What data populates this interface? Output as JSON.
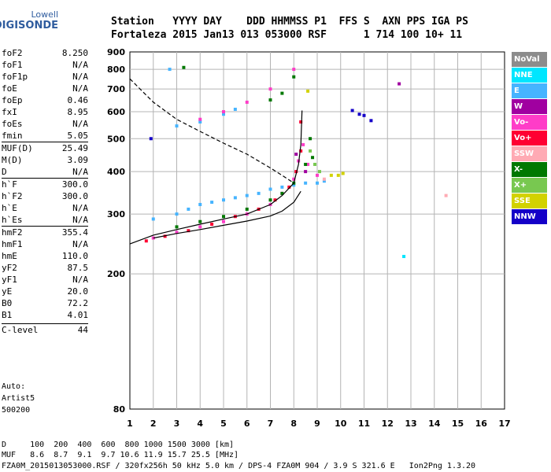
{
  "logo": {
    "top": "Lowell",
    "bottom": "DIGISONDE"
  },
  "header": {
    "line1": "Station   YYYY DAY    DDD HHMMSS P1  FFS S  AXN PPS IGA PS",
    "line2": "Fortaleza 2015 Jan13 013 053000 RSF      1 714 100 10+ 11"
  },
  "params": [
    {
      "name": "foF2",
      "value": "8.250"
    },
    {
      "name": "foF1",
      "value": "N/A"
    },
    {
      "name": "foF1p",
      "value": "N/A"
    },
    {
      "name": "foE",
      "value": "N/A"
    },
    {
      "name": "foEp",
      "value": "0.46"
    },
    {
      "name": "fxI",
      "value": "8.95"
    },
    {
      "name": "foEs",
      "value": "N/A"
    },
    {
      "name": "fmin",
      "value": "5.05"
    },
    {
      "name": "MUF(D)",
      "value": "25.49",
      "sep": true
    },
    {
      "name": "M(D)",
      "value": "3.09"
    },
    {
      "name": "D",
      "value": "N/A"
    },
    {
      "name": "h`F",
      "value": "300.0",
      "sep": true
    },
    {
      "name": "h`F2",
      "value": "300.0"
    },
    {
      "name": "h`E",
      "value": "N/A"
    },
    {
      "name": "h`Es",
      "value": "N/A"
    },
    {
      "name": "hmF2",
      "value": "355.4",
      "sep": true
    },
    {
      "name": "hmF1",
      "value": "N/A"
    },
    {
      "name": "hmE",
      "value": "110.0"
    },
    {
      "name": "yF2",
      "value": "87.5"
    },
    {
      "name": "yF1",
      "value": "N/A"
    },
    {
      "name": "yE",
      "value": "20.0"
    },
    {
      "name": "B0",
      "value": "72.2"
    },
    {
      "name": "B1",
      "value": "4.01"
    },
    {
      "name": "C-level",
      "value": "44",
      "sep": true,
      "gap": true
    }
  ],
  "auto": {
    "line1": "Auto:",
    "line2": "Artist5",
    "line3": "500200"
  },
  "legend": [
    {
      "label": "NoVal",
      "color": "#8c8c8c"
    },
    {
      "label": "NNE",
      "color": "#00e6ff"
    },
    {
      "label": "E",
      "color": "#46b4ff"
    },
    {
      "label": "W",
      "color": "#a000a0"
    },
    {
      "label": "Vo-",
      "color": "#ff3cc8"
    },
    {
      "label": "Vo+",
      "color": "#ff0032"
    },
    {
      "label": "SSW",
      "color": "#ffaab4"
    },
    {
      "label": "X-",
      "color": "#007800"
    },
    {
      "label": "X+",
      "color": "#78c850"
    },
    {
      "label": "SSE",
      "color": "#d2d200"
    },
    {
      "label": "NNW",
      "color": "#1400c8"
    }
  ],
  "footer": {
    "line1": "D     100  200  400  600  800 1000 1500 3000 [km]",
    "line2": "MUF   8.6  8.7  9.1  9.7 10.6 11.9 15.7 25.5 [MHz]",
    "line3": "FZA0M_2015013053000.RSF / 320fx256h 50 kHz 5.0 km / DPS-4 FZA0M 904 / 3.9 S 321.6 E   Ion2Png 1.3.20"
  },
  "chart_data": {
    "type": "scatter",
    "xlim": [
      1,
      17
    ],
    "ylim": [
      80,
      900
    ],
    "x_scale": "linear",
    "y_scale": "log",
    "xticks": [
      1,
      2,
      3,
      4,
      5,
      6,
      7,
      8,
      9,
      10,
      11,
      12,
      13,
      14,
      15,
      16,
      17
    ],
    "yticks": [
      80,
      200,
      300,
      400,
      500,
      600,
      700,
      800,
      900
    ],
    "grid": true,
    "legend_position": "right",
    "series": [
      {
        "name": "E",
        "color": "#46b4ff",
        "points": [
          [
            2.0,
            290
          ],
          [
            3.0,
            300
          ],
          [
            3.5,
            310
          ],
          [
            4.0,
            320
          ],
          [
            4.5,
            325
          ],
          [
            5.0,
            330
          ],
          [
            5.5,
            335
          ],
          [
            6.0,
            340
          ],
          [
            6.5,
            345
          ],
          [
            7.0,
            355
          ],
          [
            7.5,
            360
          ],
          [
            8.0,
            365
          ],
          [
            8.5,
            370
          ],
          [
            9.0,
            370
          ],
          [
            9.3,
            375
          ],
          [
            3.0,
            545
          ],
          [
            4.0,
            560
          ],
          [
            5.0,
            590
          ],
          [
            5.5,
            610
          ],
          [
            2.7,
            800
          ]
        ]
      },
      {
        "name": "Vo-",
        "color": "#ff3cc8",
        "points": [
          [
            2.0,
            255
          ],
          [
            3.0,
            265
          ],
          [
            4.0,
            275
          ],
          [
            5.0,
            285
          ],
          [
            6.0,
            300
          ],
          [
            7.0,
            320
          ],
          [
            7.5,
            345
          ],
          [
            8.0,
            380
          ],
          [
            8.2,
            430
          ],
          [
            8.4,
            480
          ],
          [
            8.6,
            420
          ],
          [
            9.0,
            390
          ],
          [
            4.0,
            570
          ],
          [
            5.0,
            600
          ],
          [
            6.0,
            640
          ],
          [
            7.0,
            700
          ],
          [
            8.0,
            800
          ]
        ]
      },
      {
        "name": "Vo+",
        "color": "#ff0032",
        "points": [
          [
            1.7,
            250
          ],
          [
            2.5,
            258
          ],
          [
            3.5,
            268
          ],
          [
            4.5,
            280
          ],
          [
            5.5,
            295
          ],
          [
            6.5,
            310
          ],
          [
            7.2,
            330
          ],
          [
            7.8,
            360
          ],
          [
            8.1,
            400
          ],
          [
            8.3,
            460
          ],
          [
            8.3,
            560
          ]
        ]
      },
      {
        "name": "X-",
        "color": "#007800",
        "points": [
          [
            3.0,
            275
          ],
          [
            4.0,
            285
          ],
          [
            5.0,
            295
          ],
          [
            6.0,
            310
          ],
          [
            7.0,
            330
          ],
          [
            7.5,
            345
          ],
          [
            8.0,
            370
          ],
          [
            8.5,
            420
          ],
          [
            8.7,
            500
          ],
          [
            8.8,
            440
          ],
          [
            7.0,
            650
          ],
          [
            7.5,
            680
          ],
          [
            8.0,
            760
          ],
          [
            3.3,
            810
          ]
        ]
      },
      {
        "name": "X+",
        "color": "#78c850",
        "points": [
          [
            8.7,
            460
          ],
          [
            8.9,
            420
          ],
          [
            9.1,
            400
          ]
        ]
      },
      {
        "name": "SSE",
        "color": "#d2d200",
        "points": [
          [
            9.6,
            390
          ],
          [
            9.9,
            390
          ],
          [
            10.1,
            395
          ],
          [
            8.6,
            690
          ]
        ]
      },
      {
        "name": "W",
        "color": "#a000a0",
        "points": [
          [
            8.1,
            450
          ],
          [
            8.5,
            400
          ],
          [
            12.5,
            725
          ]
        ]
      },
      {
        "name": "NNW",
        "color": "#1400c8",
        "points": [
          [
            10.5,
            605
          ],
          [
            10.8,
            590
          ],
          [
            11.0,
            585
          ],
          [
            11.3,
            565
          ],
          [
            1.9,
            500
          ]
        ]
      },
      {
        "name": "SSW",
        "color": "#ffaab4",
        "points": [
          [
            9.3,
            380
          ],
          [
            14.5,
            340
          ]
        ]
      },
      {
        "name": "NNE",
        "color": "#00e6ff",
        "points": [
          [
            12.7,
            225
          ]
        ]
      }
    ],
    "curves": [
      {
        "name": "profile",
        "style": "dashed",
        "points": [
          [
            1.0,
            750
          ],
          [
            2.0,
            640
          ],
          [
            3.0,
            570
          ],
          [
            4.0,
            525
          ],
          [
            5.0,
            485
          ],
          [
            6.0,
            450
          ],
          [
            7.0,
            410
          ],
          [
            7.5,
            390
          ],
          [
            8.0,
            370
          ]
        ]
      },
      {
        "name": "trace",
        "style": "solid",
        "points": [
          [
            1.0,
            245
          ],
          [
            2.0,
            260
          ],
          [
            3.0,
            270
          ],
          [
            4.0,
            280
          ],
          [
            5.0,
            290
          ],
          [
            6.0,
            300
          ],
          [
            7.0,
            320
          ],
          [
            7.5,
            340
          ],
          [
            8.0,
            370
          ],
          [
            8.2,
            420
          ],
          [
            8.3,
            480
          ],
          [
            8.35,
            605
          ]
        ]
      },
      {
        "name": "trace2",
        "style": "solid",
        "points": [
          [
            2.0,
            255
          ],
          [
            3.0,
            263
          ],
          [
            4.0,
            270
          ],
          [
            5.0,
            278
          ],
          [
            6.0,
            286
          ],
          [
            7.0,
            296
          ],
          [
            7.5,
            306
          ],
          [
            8.0,
            325
          ],
          [
            8.3,
            350
          ]
        ]
      }
    ]
  }
}
